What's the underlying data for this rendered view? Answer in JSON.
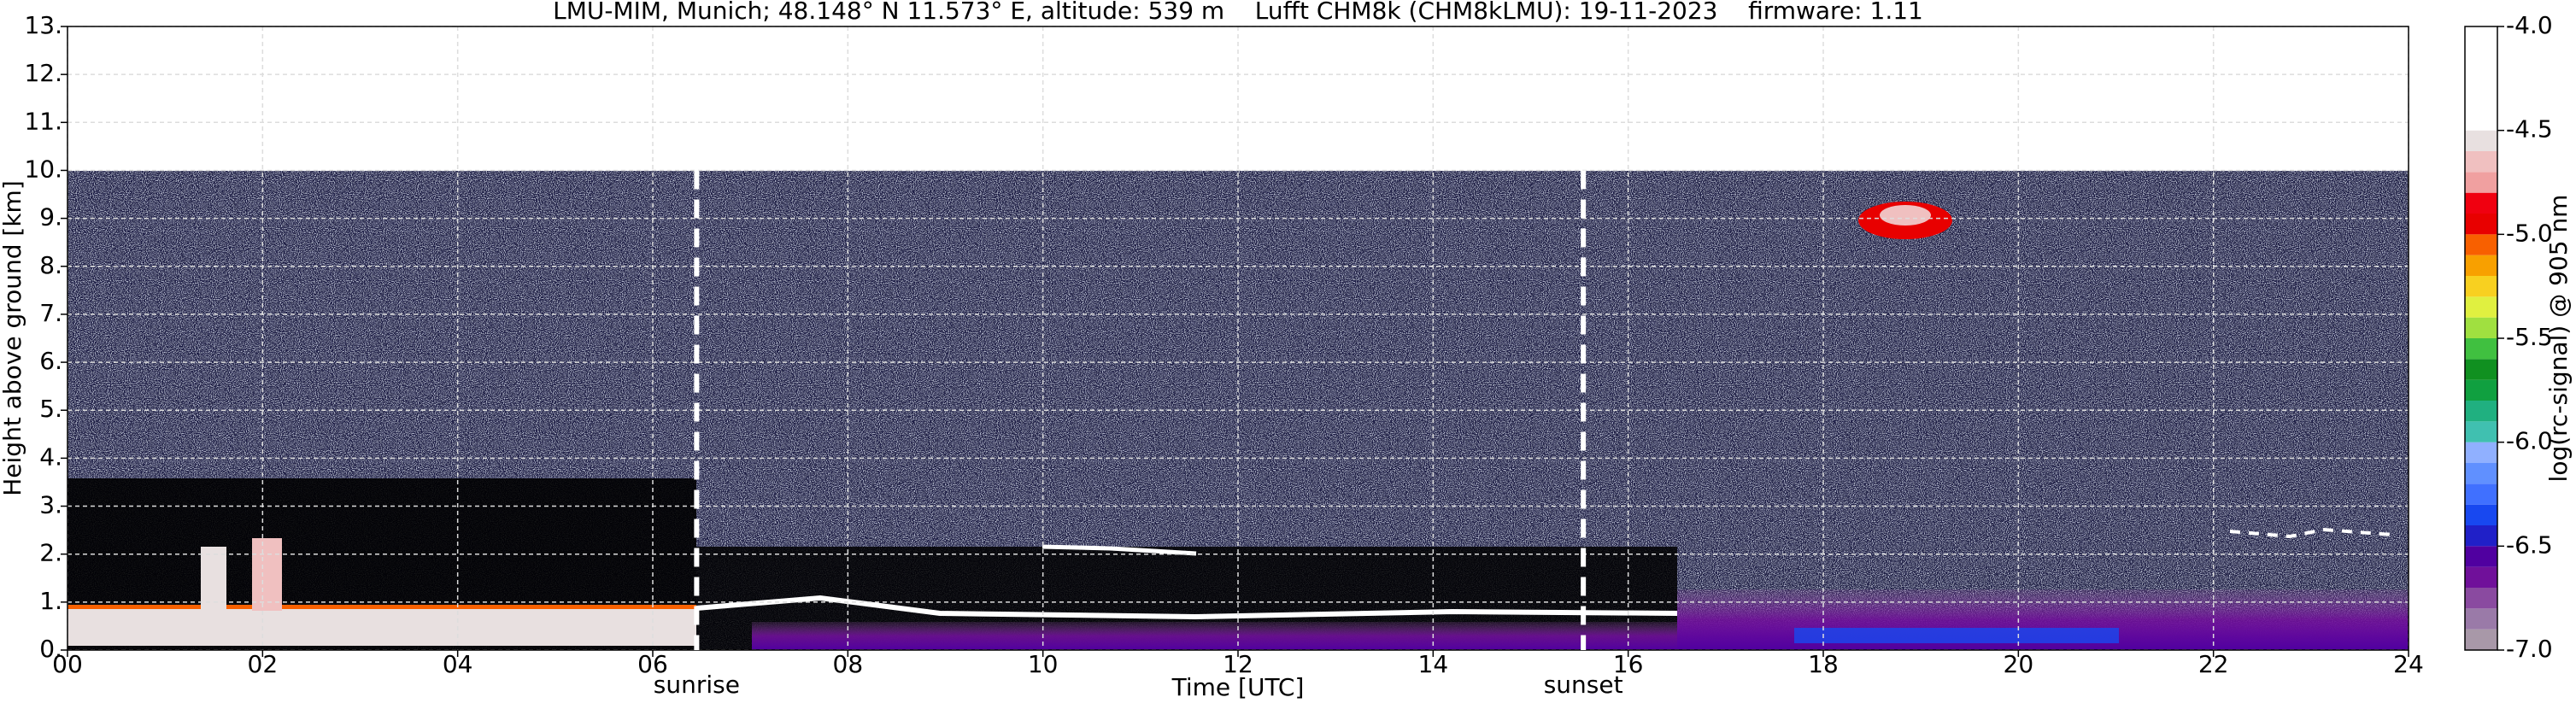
{
  "chart_data": {
    "type": "heatmap",
    "title": "LMU-MIM, Munich; 48.148° N 11.573° E, altitude: 539 m    Lufft CHM8k (CHM8kLMU): 19-11-2023    firmware: 1.11",
    "xlabel": "Time [UTC]",
    "ylabel": "Height above ground [km]",
    "xlim": [
      0,
      24
    ],
    "xticks": [
      {
        "value": 0,
        "label": "00"
      },
      {
        "value": 2,
        "label": "02"
      },
      {
        "value": 4,
        "label": "04"
      },
      {
        "value": 6,
        "label": "06"
      },
      {
        "value": 8,
        "label": "08"
      },
      10,
      12,
      14,
      16,
      18,
      20,
      22,
      24
    ],
    "ylim": [
      0,
      13
    ],
    "yticks": [
      {
        "value": 0,
        "label": "0."
      },
      {
        "value": 1,
        "label": "1."
      },
      {
        "value": 2,
        "label": "2."
      },
      {
        "value": 3,
        "label": "3."
      },
      {
        "value": 4,
        "label": "4."
      },
      {
        "value": 5,
        "label": "5."
      },
      {
        "value": 6,
        "label": "6."
      },
      {
        "value": 7,
        "label": "7."
      },
      {
        "value": 8,
        "label": "8."
      },
      {
        "value": 9,
        "label": "9."
      },
      {
        "value": 10,
        "label": "10."
      },
      {
        "value": 11,
        "label": "11."
      },
      {
        "value": 12,
        "label": "12."
      },
      {
        "value": 13,
        "label": "13."
      }
    ],
    "grid": true,
    "annotations": [
      {
        "label": "sunrise",
        "x": 6.45
      },
      {
        "label": "sunset",
        "x": 15.54
      }
    ],
    "colorbar": {
      "label": "log(rc-signal) @ 905 nm",
      "lim": [
        -7,
        -4
      ],
      "ticks": [
        {
          "value": -7,
          "label": "-7.0"
        },
        -6.5,
        {
          "value": -6,
          "label": "-6.0"
        },
        -5.5,
        {
          "value": -5,
          "label": "-5.0"
        },
        -4.5,
        {
          "value": -4,
          "label": "-4.0"
        }
      ],
      "levels": [
        -7,
        -6.9,
        -6.8,
        -6.7,
        -6.6,
        -6.5,
        -6.4,
        -6.3,
        -6.2,
        -6.1,
        -6,
        -5.9,
        -5.8,
        -5.7,
        -5.6,
        -5.5,
        -5.4,
        -5.3,
        -5.2,
        -5.1,
        -5,
        -4.9,
        -4.8,
        -4.7,
        -4.6,
        -4.5,
        -4
      ],
      "colors": [
        "#a898a8",
        "#9a7aa8",
        "#8a4aa0",
        "#70109a",
        "#5000a0",
        "#2020c8",
        "#1848f0",
        "#4070ff",
        "#6090ff",
        "#90b0ff",
        "#40c0b0",
        "#20b080",
        "#10a040",
        "#109020",
        "#40c040",
        "#a0e040",
        "#e0f040",
        "#f8d020",
        "#f8a000",
        "#f86000",
        "#e80000",
        "#f00010",
        "#f0a0a0",
        "#f0c0c0",
        "#e8e0e0",
        "#ffffff"
      ]
    }
  }
}
